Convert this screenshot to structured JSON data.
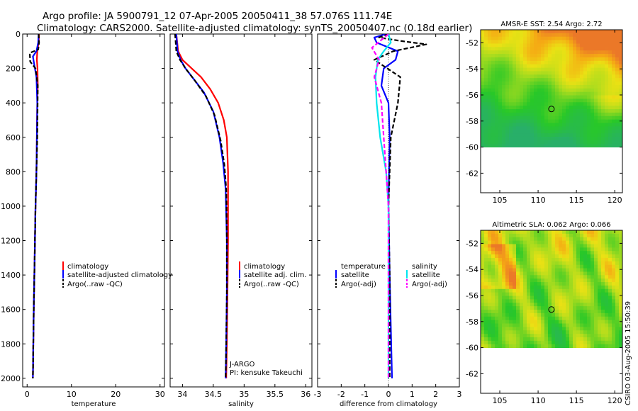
{
  "header": {
    "title_line1": "Argo profile: JA 5900791_12 07-Apr-2005 20050411_38 57.076S 111.74E",
    "title_line2": "Climatology: CARS2000. Satellite-adjusted climatology: synTS_20050407.nc (0.18d earlier)"
  },
  "credit": "CSIRO 03-Aug-2005 15:50:39",
  "colors": {
    "climatology": "#ff0000",
    "satellite": "#0000ff",
    "argo": "#000000",
    "salinity_satellite": "#00e5ee",
    "salinity_argo": "#ff00ff"
  },
  "chart_data": [
    {
      "type": "line",
      "xlabel": "temperature",
      "xlim": [
        -1,
        31
      ],
      "xticks": [
        0,
        10,
        20,
        30
      ],
      "ylim": [
        2050,
        0
      ],
      "yticks": [
        0,
        200,
        400,
        600,
        800,
        1000,
        1200,
        1400,
        1600,
        1800,
        2000
      ],
      "legend": {
        "placement": "center-right",
        "entries": [
          "climatology",
          "satellite-adjusted climatology",
          "Argo(..raw -QC)"
        ]
      },
      "series": [
        {
          "name": "climatology",
          "style": "solid",
          "color": "#ff0000",
          "x": [
            2.7,
            2.6,
            2.3,
            2.2,
            2.35,
            2.4,
            2.3,
            2.2,
            2.1,
            1.9,
            1.7,
            1.5,
            1.3
          ],
          "y": [
            0,
            50,
            100,
            150,
            200,
            300,
            400,
            600,
            800,
            1000,
            1300,
            1600,
            2000
          ]
        },
        {
          "name": "satellite-adjusted climatology",
          "style": "solid",
          "color": "#0000ff",
          "x": [
            2.6,
            2.5,
            2.1,
            1.3,
            1.5,
            2.1,
            2.3,
            2.2,
            2.1,
            1.9,
            1.7,
            1.5,
            1.3
          ],
          "y": [
            0,
            50,
            100,
            130,
            160,
            250,
            400,
            600,
            800,
            1000,
            1300,
            1600,
            2000
          ]
        },
        {
          "name": "Argo(..raw -QC)",
          "style": "dashed",
          "color": "#000000",
          "x": [
            2.6,
            2.7,
            2.5,
            0.6,
            0.7,
            1.9,
            2.4,
            2.3,
            2.1,
            1.9,
            1.7,
            1.5,
            1.3
          ],
          "y": [
            0,
            50,
            90,
            110,
            160,
            200,
            300,
            600,
            800,
            1000,
            1300,
            1600,
            2000
          ]
        }
      ]
    },
    {
      "type": "line",
      "xlabel": "salinity",
      "xlim": [
        33.8,
        36.1
      ],
      "xticks": [
        34,
        34.5,
        35,
        35.5,
        36
      ],
      "ylim": [
        2050,
        0
      ],
      "legend": {
        "placement": "center-right",
        "entries": [
          "climatology",
          "satellite adj. clim.",
          "Argo(..raw -QC)"
        ]
      },
      "annotations": [
        "J-ARGO",
        "PI: kensuke Takeuchi"
      ],
      "series": [
        {
          "name": "climatology",
          "style": "solid",
          "color": "#ff0000",
          "x": [
            33.9,
            33.93,
            34.0,
            34.15,
            34.3,
            34.45,
            34.58,
            34.67,
            34.72,
            34.74,
            34.74,
            34.73,
            34.72,
            34.71
          ],
          "y": [
            0,
            100,
            150,
            200,
            250,
            320,
            400,
            500,
            600,
            800,
            1200,
            1500,
            1800,
            2000
          ]
        },
        {
          "name": "satellite adj. clim.",
          "style": "solid",
          "color": "#0000ff",
          "x": [
            33.9,
            33.92,
            33.97,
            34.05,
            34.18,
            34.35,
            34.5,
            34.6,
            34.66,
            34.7,
            34.72,
            34.72,
            34.71,
            34.7
          ],
          "y": [
            0,
            100,
            150,
            200,
            260,
            340,
            450,
            600,
            750,
            900,
            1200,
            1500,
            1800,
            2000
          ]
        },
        {
          "name": "Argo(..raw -QC)",
          "style": "dashed",
          "color": "#000000",
          "x": [
            33.88,
            33.9,
            33.96,
            34.05,
            34.2,
            34.38,
            34.52,
            34.62,
            34.68,
            34.71,
            34.72,
            34.72,
            34.71,
            34.7
          ],
          "y": [
            0,
            100,
            150,
            200,
            270,
            360,
            470,
            620,
            760,
            900,
            1200,
            1500,
            1800,
            2000
          ]
        }
      ]
    },
    {
      "type": "line",
      "xlabel": "difference from climatology",
      "xlim": [
        -3,
        3
      ],
      "xticks": [
        -3,
        -2,
        -1,
        0,
        1,
        2,
        3
      ],
      "ylim": [
        2050,
        0
      ],
      "legend": {
        "placement": "center",
        "entries": [
          "temperature",
          "satellite",
          "Argo(-adj)",
          "salinity",
          "satellite",
          "Argo(-adj)"
        ]
      },
      "series": [
        {
          "name": "satellite",
          "group": "temperature",
          "style": "solid",
          "color": "#0000ff",
          "x": [
            -0.1,
            -0.6,
            -0.5,
            0.4,
            0.3,
            -0.2,
            -0.3,
            0.0,
            0.05,
            0.0,
            0.05,
            0.1,
            0.15
          ],
          "y": [
            0,
            20,
            50,
            100,
            150,
            200,
            300,
            400,
            600,
            1000,
            1400,
            1700,
            2000
          ]
        },
        {
          "name": "Argo(-adj)",
          "group": "temperature",
          "style": "dashed",
          "color": "#000000",
          "x": [
            0.0,
            -0.4,
            0.5,
            1.6,
            0.2,
            -0.6,
            0.5,
            0.4,
            0.1,
            0.0,
            0.05,
            0.05,
            0.05
          ],
          "y": [
            0,
            20,
            40,
            60,
            100,
            150,
            250,
            400,
            600,
            1000,
            1400,
            1700,
            2000
          ]
        },
        {
          "name": "satellite",
          "group": "salinity",
          "style": "solid",
          "color": "#00e5ee",
          "x": [
            0.0,
            0.1,
            -0.2,
            -0.45,
            -0.55,
            -0.5,
            -0.35,
            -0.1,
            0.0,
            0.0,
            0.0,
            0.0
          ],
          "y": [
            0,
            50,
            100,
            150,
            250,
            400,
            600,
            800,
            1000,
            1400,
            1700,
            2000
          ]
        },
        {
          "name": "Argo(-adj)",
          "group": "salinity",
          "style": "dashed",
          "color": "#ff00ff",
          "x": [
            0.0,
            -0.7,
            -0.4,
            -0.6,
            -0.3,
            -0.2,
            -0.1,
            0.0,
            0.0,
            0.0,
            0.0
          ],
          "y": [
            0,
            80,
            150,
            250,
            400,
            600,
            800,
            1000,
            1400,
            1700,
            2000
          ]
        }
      ]
    },
    {
      "type": "heatmap",
      "title": "AMSR-E SST: 2.54 Argo: 2.72",
      "xlim": [
        102.5,
        121
      ],
      "xticks": [
        105,
        110,
        115,
        120
      ],
      "ylim": [
        -63.5,
        -51
      ],
      "yticks": [
        -52,
        -54,
        -56,
        -58,
        -60,
        -62
      ],
      "data_extent_lat": [
        -60,
        -51
      ],
      "marker": {
        "lon": 111.74,
        "lat": -57.076,
        "shape": "circle"
      },
      "colormap": "green-yellow-orange"
    },
    {
      "type": "heatmap",
      "title": "Altimetric SLA: 0.062 Argo: 0.066",
      "xlim": [
        102.5,
        121
      ],
      "xticks": [
        105,
        110,
        115,
        120
      ],
      "ylim": [
        -63.5,
        -51
      ],
      "yticks": [
        -52,
        -54,
        -56,
        -58,
        -60,
        -62
      ],
      "data_extent_lat": [
        -60,
        -51
      ],
      "marker": {
        "lon": 111.74,
        "lat": -57.076,
        "shape": "circle"
      },
      "colormap": "green-yellow-orange"
    }
  ]
}
